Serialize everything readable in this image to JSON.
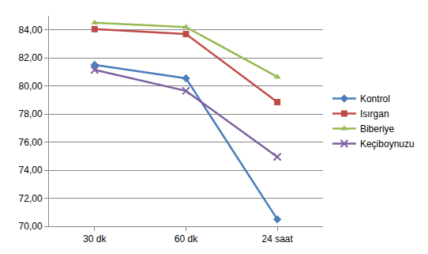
{
  "chart_data": {
    "type": "line",
    "categories": [
      "30 dk",
      "60 dk",
      "24 saat"
    ],
    "series": [
      {
        "name": "Kontrol",
        "color": "#4a7ebb",
        "marker": "diamond",
        "values": [
          81.5,
          80.55,
          70.5
        ]
      },
      {
        "name": "Isırgan",
        "color": "#be4b48",
        "marker": "square",
        "values": [
          84.05,
          83.7,
          78.85
        ]
      },
      {
        "name": "Biberiye",
        "color": "#98b954",
        "marker": "triangle-up",
        "values": [
          84.5,
          84.2,
          80.65
        ]
      },
      {
        "name": "Keçiboynuzu",
        "color": "#7d60a0",
        "marker": "x",
        "values": [
          81.15,
          79.65,
          74.95
        ]
      }
    ],
    "ylim": [
      70,
      85
    ],
    "yticks": [
      {
        "value": 70,
        "label": "70,00"
      },
      {
        "value": 72,
        "label": "72,00"
      },
      {
        "value": 74,
        "label": "74,00"
      },
      {
        "value": 76,
        "label": "76,00"
      },
      {
        "value": 78,
        "label": "78,00"
      },
      {
        "value": 80,
        "label": "80,00"
      },
      {
        "value": 82,
        "label": "82,00"
      },
      {
        "value": 84,
        "label": "84,00"
      }
    ],
    "grid": true,
    "legend": "right"
  }
}
